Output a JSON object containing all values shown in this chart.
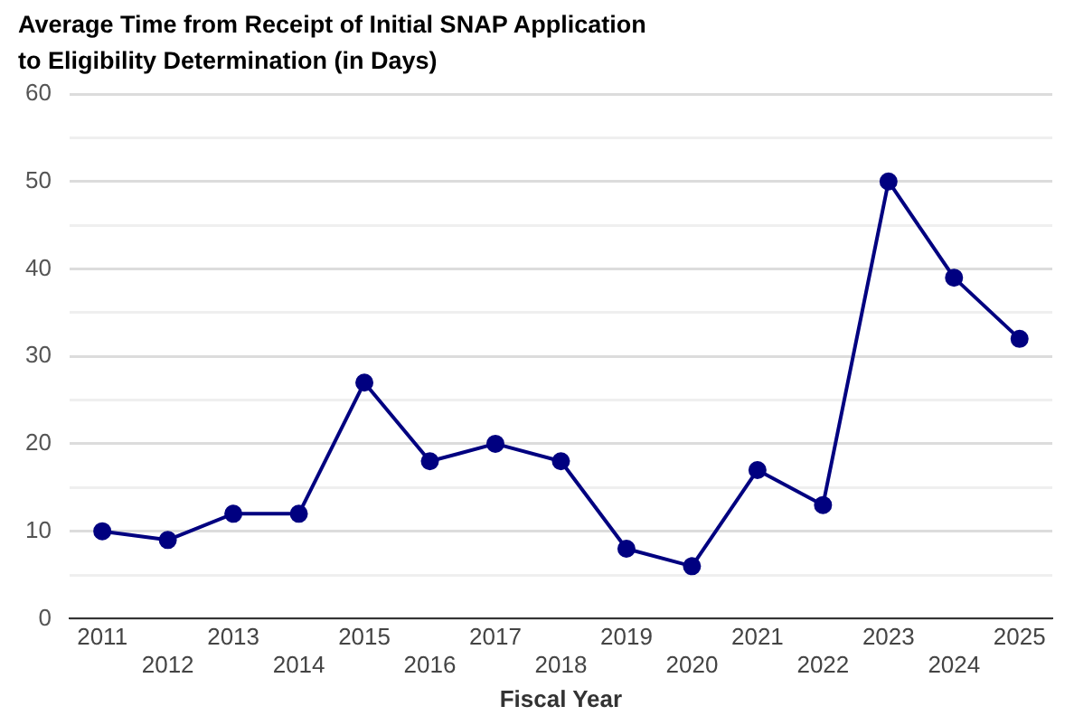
{
  "chart_data": {
    "type": "line",
    "title": "Average Time from Receipt of Initial SNAP Application to Eligibility Determination (in Days)",
    "xlabel": "Fiscal Year",
    "categories": [
      "2011",
      "2012",
      "2013",
      "2014",
      "2015",
      "2016",
      "2017",
      "2018",
      "2019",
      "2020",
      "2021",
      "2022",
      "2023",
      "2024",
      "2025"
    ],
    "series": [
      {
        "color": "#000080",
        "values": [
          10,
          9,
          12,
          12,
          27,
          18,
          20,
          18,
          8,
          6,
          17,
          13,
          50,
          39,
          32
        ]
      }
    ],
    "ylim": [
      0,
      60
    ],
    "yticks": [
      0,
      {
        "value": 5,
        "label": null
      },
      10,
      {
        "value": 15,
        "label": null
      },
      20,
      {
        "value": 25,
        "label": null
      },
      30,
      {
        "value": 35,
        "label": null
      },
      40,
      {
        "value": 45,
        "label": null
      },
      50,
      {
        "value": 55,
        "label": null
      },
      60
    ],
    "grid": "y",
    "legend": false,
    "marker": "circle",
    "line_style": "solid"
  }
}
